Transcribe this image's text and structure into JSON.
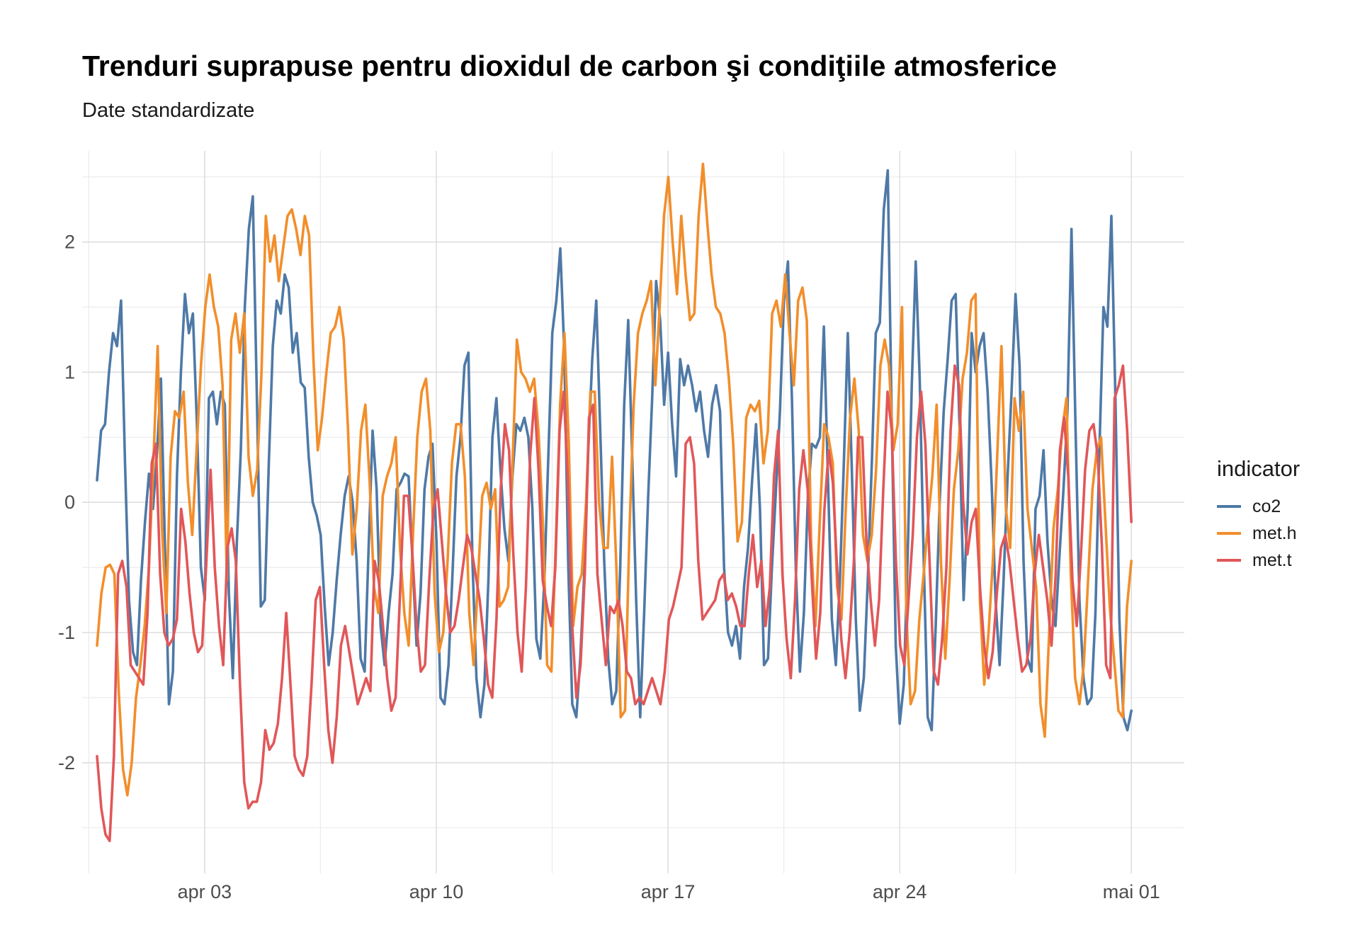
{
  "chart_data": {
    "type": "line",
    "title": "Trenduri suprapuse pentru dioxidul de carbon şi condiţiile atmosferice",
    "subtitle": "Date standardizate",
    "xlabel": "",
    "ylabel": "",
    "x_ticks": [
      "apr 03",
      "apr 10",
      "apr 17",
      "apr 24",
      "mai 01"
    ],
    "x_tick_days": [
      3,
      10,
      17,
      24,
      31
    ],
    "x_range_days": [
      -0.7,
      32.6
    ],
    "x_start_day": -0.25,
    "x_end_day": 31.0,
    "y_ticks": [
      2,
      1,
      0,
      -1,
      -2
    ],
    "ylim": [
      -2.85,
      2.7
    ],
    "grid": true,
    "legend": {
      "title": "indicator",
      "position": "right"
    },
    "series": [
      {
        "name": "co2",
        "color": "#4e79a7",
        "values": [
          0.17,
          0.55,
          0.6,
          1.0,
          1.3,
          1.2,
          1.55,
          0.3,
          -0.75,
          -1.15,
          -1.25,
          -0.6,
          -0.15,
          0.22,
          -0.05,
          0.38,
          0.95,
          -0.35,
          -1.55,
          -1.3,
          0.2,
          1.0,
          1.6,
          1.3,
          1.45,
          0.6,
          -0.5,
          -0.75,
          0.8,
          0.85,
          0.6,
          0.85,
          0.75,
          -0.7,
          -1.35,
          -0.3,
          0.4,
          1.5,
          2.1,
          2.35,
          0.85,
          -0.8,
          -0.75,
          0.3,
          1.2,
          1.55,
          1.45,
          1.75,
          1.65,
          1.15,
          1.3,
          0.92,
          0.88,
          0.35,
          0.0,
          -0.1,
          -0.25,
          -0.8,
          -1.25,
          -1.0,
          -0.6,
          -0.25,
          0.05,
          0.2,
          0.0,
          -0.45,
          -1.2,
          -1.3,
          -0.35,
          0.55,
          0.1,
          -0.95,
          -1.25,
          -0.85,
          -0.55,
          0.1,
          0.15,
          0.22,
          0.2,
          -0.45,
          -1.1,
          -0.7,
          0.1,
          0.35,
          0.45,
          -0.3,
          -1.5,
          -1.55,
          -1.25,
          -0.55,
          0.2,
          0.5,
          1.05,
          1.15,
          -0.45,
          -1.35,
          -1.65,
          -1.4,
          -0.6,
          0.5,
          0.8,
          0.25,
          -0.2,
          -0.45,
          0.2,
          0.6,
          0.55,
          0.65,
          0.5,
          -0.05,
          -1.05,
          -1.2,
          -0.6,
          0.35,
          1.3,
          1.55,
          1.95,
          1.15,
          -0.5,
          -1.55,
          -1.65,
          -1.2,
          -0.55,
          0.4,
          1.1,
          1.55,
          0.55,
          -0.45,
          -1.2,
          -1.55,
          -1.45,
          -0.5,
          0.75,
          1.4,
          0.35,
          -0.75,
          -1.65,
          -0.85,
          0.05,
          0.8,
          1.7,
          1.4,
          0.75,
          1.15,
          0.6,
          0.2,
          1.1,
          0.9,
          1.05,
          0.9,
          0.7,
          0.85,
          0.55,
          0.35,
          0.75,
          0.9,
          0.7,
          -0.5,
          -1.0,
          -1.1,
          -0.95,
          -1.2,
          -0.65,
          -0.35,
          0.15,
          0.6,
          -0.05,
          -1.25,
          -1.2,
          -0.5,
          0.1,
          0.7,
          1.55,
          1.85,
          0.8,
          -0.55,
          -1.3,
          -0.85,
          0.05,
          0.45,
          0.42,
          0.5,
          1.35,
          0.2,
          -0.9,
          -1.25,
          -0.6,
          0.3,
          1.3,
          0.25,
          -0.9,
          -1.6,
          -1.35,
          -0.6,
          0.3,
          1.3,
          1.38,
          2.25,
          2.55,
          0.6,
          -1.1,
          -1.7,
          -1.4,
          -0.4,
          0.9,
          1.85,
          0.95,
          -0.45,
          -1.65,
          -1.75,
          -0.95,
          0.0,
          0.7,
          1.1,
          1.55,
          1.6,
          0.55,
          -0.75,
          -0.05,
          1.3,
          1.0,
          1.2,
          1.3,
          0.85,
          0.15,
          -0.75,
          -1.25,
          -0.6,
          0.2,
          0.85,
          1.6,
          1.05,
          -0.45,
          -1.2,
          -1.3,
          -0.05,
          0.05,
          0.4,
          -0.3,
          -0.75,
          -0.95,
          -0.4,
          0.1,
          0.7,
          2.1,
          0.6,
          -0.75,
          -1.35,
          -1.55,
          -1.5,
          -0.85,
          0.4,
          1.5,
          1.35,
          2.2,
          0.8,
          -0.9,
          -1.65,
          -1.75,
          -1.6
        ]
      },
      {
        "name": "met.h",
        "color": "#f28e2b",
        "values": [
          -1.1,
          -0.7,
          -0.5,
          -0.48,
          -0.55,
          -1.45,
          -2.05,
          -2.25,
          -2.0,
          -1.5,
          -1.25,
          -0.95,
          -0.5,
          0.3,
          1.2,
          -0.2,
          -0.85,
          0.35,
          0.7,
          0.65,
          0.85,
          0.15,
          -0.25,
          0.4,
          1.05,
          1.5,
          1.75,
          1.5,
          1.35,
          0.9,
          -0.6,
          1.25,
          1.45,
          1.15,
          1.45,
          0.35,
          0.05,
          0.25,
          1.0,
          2.2,
          1.85,
          2.05,
          1.7,
          1.95,
          2.2,
          2.25,
          2.1,
          1.9,
          2.2,
          2.05,
          1.1,
          0.4,
          0.65,
          1.0,
          1.3,
          1.35,
          1.5,
          1.25,
          0.55,
          -0.4,
          -0.05,
          0.55,
          0.75,
          0.15,
          -0.65,
          -0.85,
          0.05,
          0.2,
          0.3,
          0.5,
          -0.35,
          -0.85,
          -1.1,
          -0.25,
          0.5,
          0.85,
          0.95,
          0.55,
          -0.7,
          -1.15,
          -1.0,
          -0.45,
          0.3,
          0.6,
          0.6,
          0.2,
          -0.85,
          -1.25,
          -0.6,
          0.05,
          0.15,
          -0.05,
          0.1,
          -0.8,
          -0.75,
          -0.65,
          0.3,
          1.25,
          1.0,
          0.95,
          0.85,
          0.95,
          0.55,
          -0.15,
          -1.25,
          -1.3,
          -0.3,
          0.75,
          1.3,
          0.45,
          -0.95,
          -0.65,
          -0.55,
          0.0,
          0.85,
          0.85,
          0.0,
          -0.35,
          -0.35,
          0.35,
          -0.5,
          -1.65,
          -1.6,
          -0.25,
          0.75,
          1.3,
          1.45,
          1.55,
          1.7,
          0.9,
          1.5,
          2.2,
          2.5,
          2.0,
          1.6,
          2.2,
          1.75,
          1.4,
          1.45,
          2.2,
          2.6,
          2.15,
          1.75,
          1.5,
          1.45,
          1.3,
          0.95,
          0.45,
          -0.3,
          -0.15,
          0.65,
          0.75,
          0.7,
          0.78,
          0.3,
          0.55,
          1.45,
          1.55,
          1.35,
          1.75,
          1.3,
          0.9,
          1.55,
          1.65,
          1.4,
          -0.3,
          -0.95,
          -0.15,
          0.6,
          0.5,
          0.3,
          -0.65,
          -0.9,
          -0.05,
          0.65,
          0.95,
          0.55,
          -0.25,
          -0.45,
          -0.25,
          0.25,
          1.05,
          1.25,
          1.05,
          0.4,
          0.6,
          1.5,
          -0.85,
          -1.55,
          -1.45,
          -0.9,
          -0.55,
          -0.15,
          0.2,
          0.75,
          -0.45,
          -1.2,
          -0.6,
          0.1,
          0.4,
          0.95,
          1.15,
          1.55,
          1.6,
          -0.75,
          -1.4,
          -1.0,
          -0.45,
          0.35,
          1.2,
          -0.05,
          -0.35,
          0.8,
          0.55,
          0.85,
          -0.05,
          -0.35,
          -0.65,
          -1.55,
          -1.8,
          -1.0,
          -0.2,
          0.1,
          0.55,
          0.8,
          -0.55,
          -1.35,
          -1.55,
          -1.25,
          -0.6,
          0.1,
          0.4,
          0.5,
          -0.15,
          -0.8,
          -1.2,
          -1.6,
          -1.65,
          -0.8,
          -0.45
        ]
      },
      {
        "name": "met.t",
        "color": "#e15759",
        "values": [
          -1.95,
          -2.35,
          -2.55,
          -2.6,
          -1.95,
          -0.55,
          -0.45,
          -0.65,
          -1.25,
          -1.3,
          -1.35,
          -1.4,
          -0.85,
          0.3,
          0.45,
          -0.55,
          -1.0,
          -1.1,
          -1.05,
          -0.9,
          -0.05,
          -0.3,
          -0.7,
          -1.0,
          -1.15,
          -1.1,
          -0.45,
          0.25,
          -0.5,
          -0.95,
          -1.25,
          -0.35,
          -0.2,
          -0.45,
          -1.4,
          -2.15,
          -2.35,
          -2.3,
          -2.3,
          -2.15,
          -1.75,
          -1.9,
          -1.85,
          -1.7,
          -1.35,
          -0.85,
          -1.4,
          -1.95,
          -2.05,
          -2.1,
          -1.95,
          -1.4,
          -0.75,
          -0.65,
          -1.25,
          -1.75,
          -2.0,
          -1.65,
          -1.1,
          -0.95,
          -1.15,
          -1.35,
          -1.55,
          -1.45,
          -1.35,
          -1.45,
          -0.45,
          -0.6,
          -0.95,
          -1.35,
          -1.6,
          -1.5,
          -0.75,
          0.05,
          0.05,
          -0.4,
          -0.95,
          -1.3,
          -1.25,
          -0.6,
          -0.05,
          0.1,
          -0.3,
          -0.7,
          -1.0,
          -0.95,
          -0.75,
          -0.5,
          -0.25,
          -0.35,
          -0.55,
          -0.75,
          -1.05,
          -1.4,
          -1.5,
          -0.9,
          0.1,
          0.6,
          0.4,
          -0.4,
          -1.0,
          -1.3,
          -0.65,
          0.35,
          0.8,
          0.25,
          -0.6,
          -0.8,
          -0.95,
          -0.5,
          0.55,
          0.85,
          0.15,
          -0.95,
          -1.5,
          -1.25,
          -0.55,
          0.65,
          0.75,
          -0.55,
          -0.9,
          -1.25,
          -0.8,
          -0.85,
          -0.75,
          -0.95,
          -1.3,
          -1.35,
          -1.55,
          -1.5,
          -1.55,
          -1.45,
          -1.35,
          -1.45,
          -1.55,
          -1.3,
          -0.9,
          -0.8,
          -0.65,
          -0.5,
          0.45,
          0.5,
          0.3,
          -0.45,
          -0.9,
          -0.85,
          -0.8,
          -0.75,
          -0.6,
          -0.55,
          -0.75,
          -0.7,
          -0.8,
          -0.95,
          -0.95,
          -0.55,
          -0.25,
          -0.65,
          -0.45,
          -0.95,
          -0.65,
          0.2,
          0.55,
          -0.55,
          -1.05,
          -1.35,
          -0.75,
          0.1,
          0.4,
          0.1,
          -0.6,
          -1.2,
          -0.85,
          -0.05,
          0.4,
          0.15,
          -0.5,
          -1.05,
          -1.35,
          -1.0,
          -0.45,
          0.5,
          0.5,
          -0.3,
          -0.75,
          -1.1,
          -0.75,
          0.1,
          0.85,
          0.55,
          -0.45,
          -1.1,
          -1.25,
          -0.75,
          -0.25,
          0.5,
          0.85,
          0.45,
          -0.45,
          -1.3,
          -1.4,
          -1.05,
          -0.5,
          0.55,
          1.05,
          0.9,
          0.0,
          -0.4,
          -0.15,
          -0.05,
          -0.65,
          -1.1,
          -1.35,
          -1.15,
          -0.7,
          -0.35,
          -0.25,
          -0.45,
          -0.75,
          -1.05,
          -1.3,
          -1.25,
          -1.05,
          -0.55,
          -0.25,
          -0.5,
          -0.75,
          -1.1,
          -0.55,
          0.4,
          0.65,
          0.2,
          -0.6,
          -0.95,
          -0.4,
          0.25,
          0.55,
          0.6,
          0.35,
          -0.35,
          -1.25,
          -1.35,
          0.8,
          0.9,
          1.05,
          0.55,
          -0.15
        ]
      }
    ]
  }
}
